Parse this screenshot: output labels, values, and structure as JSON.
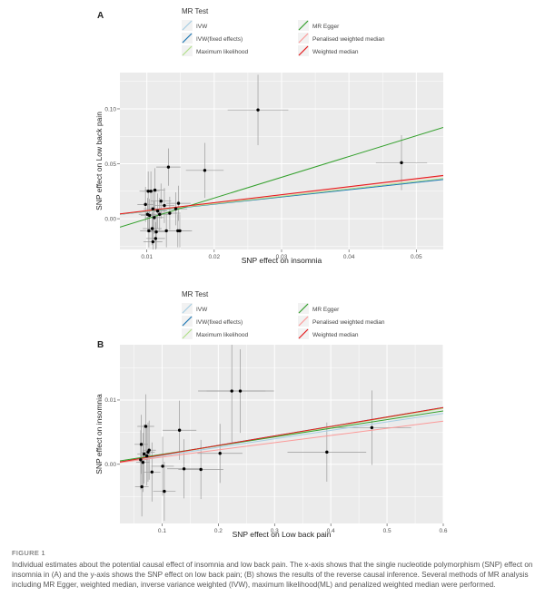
{
  "figure_caption": {
    "label": "FIGURE 1",
    "text": "Individual estimates about the potential causal effect of insomnia and low back pain. The x-axis shows that the single nucleotide polymorphism (SNP) effect on insomnia in (A) and the y-axis shows the SNP effect on low back pain; (B) shows the results of the reverse causal inference. Several methods of MR analysis including MR Egger, weighted median, inverse variance weighted (IVW), maximum likelihood(ML) and penalized weighted median were performed."
  },
  "colors": {
    "panel_bg": "#ebebeb",
    "grid": "#ffffff",
    "IVW": "#a6cee3",
    "IVW_fixed": "#1f78b4",
    "ML": "#b2df8a",
    "MR_Egger": "#33a02c",
    "PWM": "#fb9a99",
    "WM": "#e31a1c"
  },
  "chart_data": [
    {
      "type": "scatter",
      "panel_label": "A",
      "legend_title": "MR Test",
      "legend_placement": "top",
      "legend": [
        {
          "name": "IVW",
          "color": "#a6cee3"
        },
        {
          "name": "MR Egger",
          "color": "#33a02c"
        },
        {
          "name": "IVW(fixed effects)",
          "color": "#1f78b4"
        },
        {
          "name": "Penalised weighted median",
          "color": "#fb9a99"
        },
        {
          "name": "Maximum likelihood",
          "color": "#b2df8a"
        },
        {
          "name": "Weighted median",
          "color": "#e31a1c"
        }
      ],
      "xlabel": "SNP effect on insomnia",
      "ylabel": "SNP effect on Low back pain",
      "xlim": [
        0.006,
        0.054
      ],
      "ylim": [
        -0.028,
        0.133
      ],
      "xticks": [
        0.01,
        0.02,
        0.03,
        0.04,
        0.05
      ],
      "xtick_labels": [
        "0.01",
        "0.02",
        "0.03",
        "0.04",
        "0.05"
      ],
      "yticks": [
        0.0,
        0.05,
        0.1
      ],
      "ytick_labels": [
        "0.00",
        "0.05",
        "0.10"
      ],
      "grid": true,
      "points": [
        {
          "x": 0.0265,
          "y": 0.099,
          "xerr": 0.0045,
          "yerr": 0.032
        },
        {
          "x": 0.0478,
          "y": 0.051,
          "xerr": 0.0038,
          "yerr": 0.025
        },
        {
          "x": 0.0186,
          "y": 0.044,
          "xerr": 0.0028,
          "yerr": 0.025
        },
        {
          "x": 0.0132,
          "y": 0.047,
          "xerr": 0.0018,
          "yerr": 0.017
        },
        {
          "x": 0.0112,
          "y": 0.026,
          "xerr": 0.0015,
          "yerr": 0.02
        },
        {
          "x": 0.0102,
          "y": 0.025,
          "xerr": 0.0013,
          "yerr": 0.018
        },
        {
          "x": 0.0106,
          "y": 0.025,
          "xerr": 0.0013,
          "yerr": 0.018
        },
        {
          "x": 0.0098,
          "y": 0.013,
          "xerr": 0.0012,
          "yerr": 0.016
        },
        {
          "x": 0.0121,
          "y": 0.016,
          "xerr": 0.0015,
          "yerr": 0.016
        },
        {
          "x": 0.0126,
          "y": 0.012,
          "xerr": 0.0015,
          "yerr": 0.016
        },
        {
          "x": 0.0147,
          "y": 0.014,
          "xerr": 0.0018,
          "yerr": 0.016
        },
        {
          "x": 0.0109,
          "y": 0.009,
          "xerr": 0.0014,
          "yerr": 0.016
        },
        {
          "x": 0.0116,
          "y": 0.007,
          "xerr": 0.0014,
          "yerr": 0.016
        },
        {
          "x": 0.0119,
          "y": 0.004,
          "xerr": 0.0014,
          "yerr": 0.015
        },
        {
          "x": 0.0101,
          "y": 0.004,
          "xerr": 0.0013,
          "yerr": 0.015
        },
        {
          "x": 0.0104,
          "y": 0.003,
          "xerr": 0.0013,
          "yerr": 0.015
        },
        {
          "x": 0.0134,
          "y": 0.005,
          "xerr": 0.0016,
          "yerr": 0.015
        },
        {
          "x": 0.0143,
          "y": 0.009,
          "xerr": 0.0017,
          "yerr": 0.015
        },
        {
          "x": 0.0111,
          "y": 0.001,
          "xerr": 0.0014,
          "yerr": 0.015
        },
        {
          "x": 0.0108,
          "y": -0.009,
          "xerr": 0.0014,
          "yerr": 0.015
        },
        {
          "x": 0.0103,
          "y": -0.011,
          "xerr": 0.0013,
          "yerr": 0.015
        },
        {
          "x": 0.0114,
          "y": -0.012,
          "xerr": 0.0014,
          "yerr": 0.015
        },
        {
          "x": 0.0129,
          "y": -0.011,
          "xerr": 0.0016,
          "yerr": 0.015
        },
        {
          "x": 0.0146,
          "y": -0.011,
          "xerr": 0.0018,
          "yerr": 0.015
        },
        {
          "x": 0.0149,
          "y": -0.011,
          "xerr": 0.0018,
          "yerr": 0.015
        },
        {
          "x": 0.0113,
          "y": -0.018,
          "xerr": 0.0014,
          "yerr": 0.015
        },
        {
          "x": 0.0109,
          "y": -0.021,
          "xerr": 0.0014,
          "yerr": 0.015
        }
      ],
      "lines": [
        {
          "name": "IVW",
          "color": "#a6cee3",
          "intercept": 0,
          "slope": 0.66
        },
        {
          "name": "IVW(fixed effects)",
          "color": "#1f78b4",
          "intercept": 0,
          "slope": 0.66
        },
        {
          "name": "Maximum likelihood",
          "color": "#b2df8a",
          "intercept": 0,
          "slope": 0.68
        },
        {
          "name": "MR Egger",
          "color": "#33a02c",
          "intercept": -0.019,
          "slope": 1.89
        },
        {
          "name": "Penalised weighted median",
          "color": "#fb9a99",
          "intercept": 0,
          "slope": 0.72
        },
        {
          "name": "Weighted median",
          "color": "#e31a1c",
          "intercept": 0,
          "slope": 0.73
        }
      ]
    },
    {
      "type": "scatter",
      "panel_label": "B",
      "legend_title": "MR Test",
      "legend_placement": "top",
      "legend": [
        {
          "name": "IVW",
          "color": "#a6cee3"
        },
        {
          "name": "MR Egger",
          "color": "#33a02c"
        },
        {
          "name": "IVW(fixed effects)",
          "color": "#1f78b4"
        },
        {
          "name": "Penalised weighted median",
          "color": "#fb9a99"
        },
        {
          "name": "Maximum likelihood",
          "color": "#b2df8a"
        },
        {
          "name": "Weighted median",
          "color": "#e31a1c"
        }
      ],
      "xlabel": "SNP effect on Low back pain",
      "ylabel": "SNP effect on insomnia",
      "xlim": [
        0.025,
        0.6
      ],
      "ylim": [
        -0.0092,
        0.0186
      ],
      "xticks": [
        0.1,
        0.2,
        0.3,
        0.4,
        0.5,
        0.6
      ],
      "xtick_labels": [
        "0.1",
        "0.2",
        "0.3",
        "0.4",
        "0.5",
        "0.6"
      ],
      "yticks": [
        0.0,
        0.01
      ],
      "ytick_labels": [
        "0.00",
        "0.01"
      ],
      "grid": true,
      "points": [
        {
          "x": 0.224,
          "y": 0.0114,
          "xerr": 0.06,
          "yerr": 0.008
        },
        {
          "x": 0.239,
          "y": 0.0114,
          "xerr": 0.06,
          "yerr": 0.0065
        },
        {
          "x": 0.473,
          "y": 0.0057,
          "xerr": 0.07,
          "yerr": 0.0058
        },
        {
          "x": 0.393,
          "y": 0.0019,
          "xerr": 0.07,
          "yerr": 0.0046
        },
        {
          "x": 0.131,
          "y": 0.0053,
          "xerr": 0.03,
          "yerr": 0.0046
        },
        {
          "x": 0.203,
          "y": 0.0017,
          "xerr": 0.04,
          "yerr": 0.0046
        },
        {
          "x": 0.071,
          "y": 0.0059,
          "xerr": 0.015,
          "yerr": 0.005
        },
        {
          "x": 0.063,
          "y": 0.0031,
          "xerr": 0.012,
          "yerr": 0.0046
        },
        {
          "x": 0.077,
          "y": 0.0022,
          "xerr": 0.012,
          "yerr": 0.0046
        },
        {
          "x": 0.075,
          "y": 0.0019,
          "xerr": 0.012,
          "yerr": 0.0046
        },
        {
          "x": 0.068,
          "y": 0.0016,
          "xerr": 0.012,
          "yerr": 0.0046
        },
        {
          "x": 0.073,
          "y": 0.0013,
          "xerr": 0.012,
          "yerr": 0.0046
        },
        {
          "x": 0.062,
          "y": 0.0007,
          "xerr": 0.012,
          "yerr": 0.0046
        },
        {
          "x": 0.066,
          "y": 0.0003,
          "xerr": 0.012,
          "yerr": 0.0046
        },
        {
          "x": 0.082,
          "y": -0.0012,
          "xerr": 0.015,
          "yerr": 0.0046
        },
        {
          "x": 0.101,
          "y": -0.0003,
          "xerr": 0.02,
          "yerr": 0.0046
        },
        {
          "x": 0.139,
          "y": -0.0007,
          "xerr": 0.03,
          "yerr": 0.0046
        },
        {
          "x": 0.169,
          "y": -0.0008,
          "xerr": 0.04,
          "yerr": 0.0046
        },
        {
          "x": 0.064,
          "y": -0.0035,
          "xerr": 0.012,
          "yerr": 0.0046
        },
        {
          "x": 0.104,
          "y": -0.0042,
          "xerr": 0.02,
          "yerr": 0.0046
        }
      ],
      "lines": [
        {
          "name": "IVW",
          "color": "#a6cee3",
          "intercept": 0,
          "slope": 0.0132
        },
        {
          "name": "IVW(fixed effects)",
          "color": "#1f78b4",
          "intercept": 0,
          "slope": 0.0147
        },
        {
          "name": "Maximum likelihood",
          "color": "#b2df8a",
          "intercept": 0,
          "slope": 0.0145
        },
        {
          "name": "MR Egger",
          "color": "#33a02c",
          "intercept": 0.0002,
          "slope": 0.0135
        },
        {
          "name": "Penalised weighted median",
          "color": "#fb9a99",
          "intercept": 0,
          "slope": 0.0112
        },
        {
          "name": "Weighted median",
          "color": "#e31a1c",
          "intercept": 0,
          "slope": 0.0147
        }
      ]
    }
  ]
}
